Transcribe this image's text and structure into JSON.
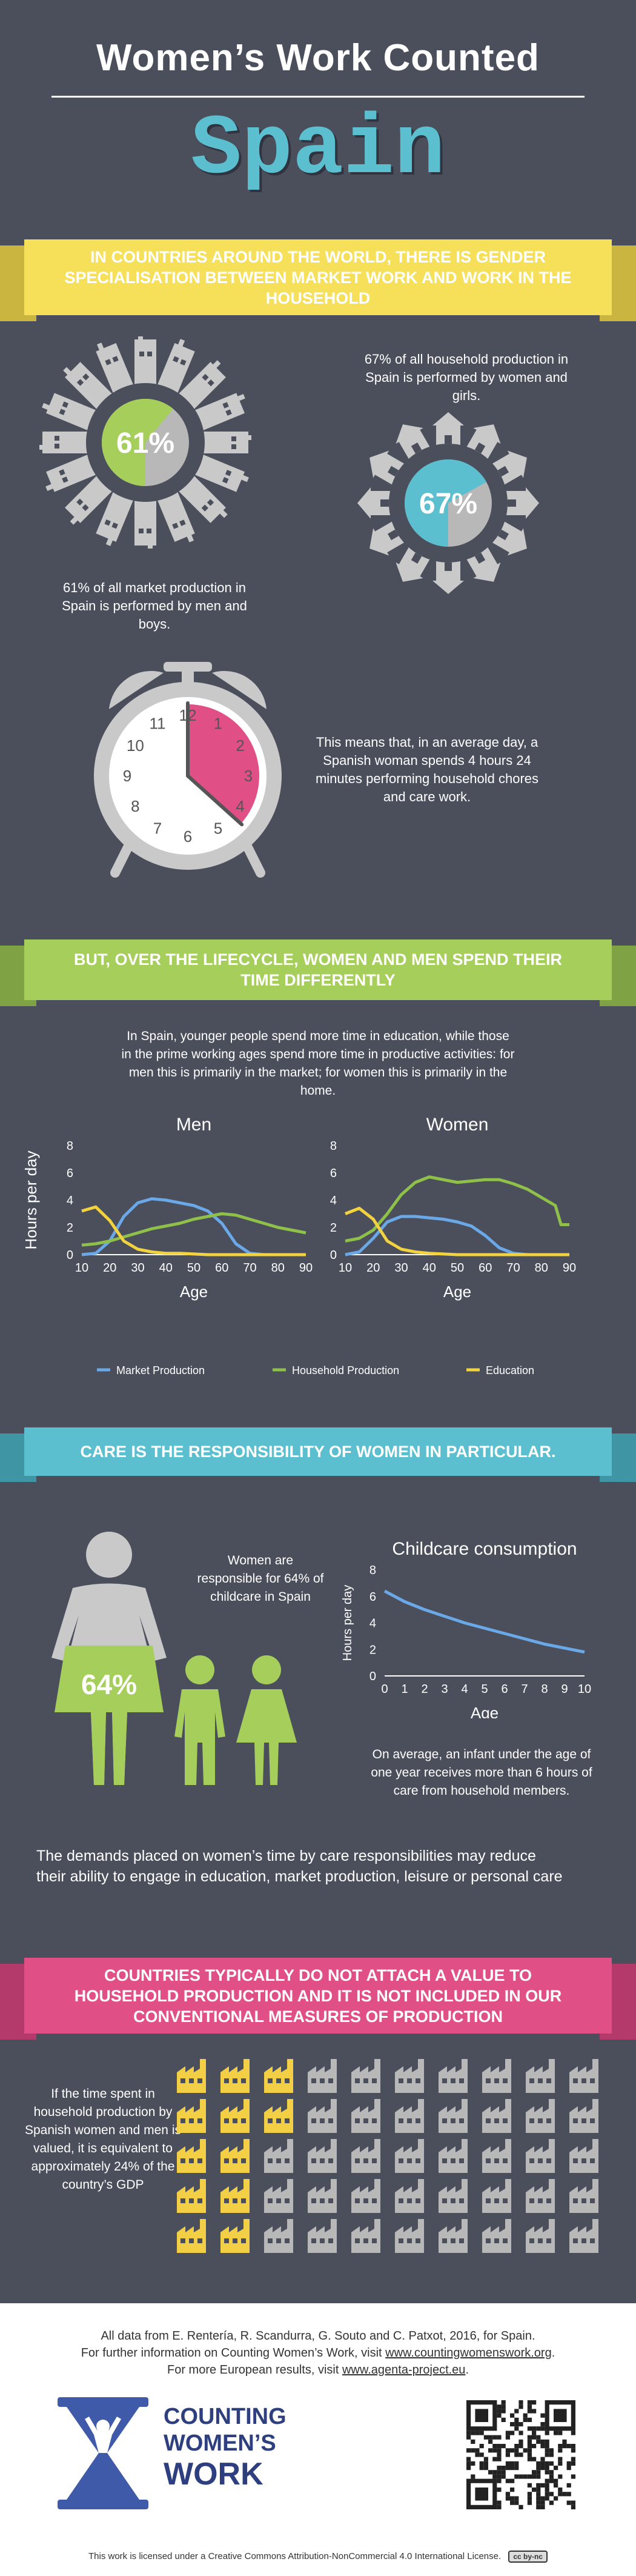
{
  "header": {
    "title": "Women’s Work Counted",
    "country": "Spain"
  },
  "section1": {
    "banner": "IN COUNTRIES AROUND THE WORLD, THERE IS GENDER SPECIALISATION BETWEEN MARKET WORK AND WORK IN THE HOUSEHOLD",
    "market_pct_label": "61%",
    "market_pct": 61,
    "market_caption": "61% of all market production in Spain is performed by men and boys.",
    "household_pct_label": "67%",
    "household_pct": 67,
    "household_caption": "67% of all household production in Spain is performed by women and girls.",
    "clock_caption": "This means that, in an average day, a Spanish woman spends 4 hours 24 minutes performing household chores and care work.",
    "clock_numbers": [
      "12",
      "1",
      "2",
      "3",
      "4",
      "5",
      "6",
      "7",
      "8",
      "9",
      "10",
      "11"
    ],
    "clock_hours": 4.4
  },
  "section2": {
    "banner": "BUT, OVER THE LIFECYCLE, WOMEN AND MEN SPEND THEIR TIME DIFFERENTLY",
    "intro": "In Spain, younger people spend more time in education, while those in the prime working ages spend more time in productive activities: for men this is primarily in the market; for women this is primarily in the home.",
    "legend": {
      "market": "Market Production",
      "household": "Household Production",
      "education": "Education"
    }
  },
  "section3": {
    "banner": "CARE IS THE RESPONSIBILITY OF WOMEN IN PARTICULAR.",
    "figure_pct": "64%",
    "women_caption": "Women are responsible for 64% of childcare in Spain",
    "infant_caption": "On average, an infant under the age of one year receives more than 6 hours of care from household members.",
    "demands_text": "The demands placed on women’s time by care responsibilities may reduce their ability to engage in education, market production, leisure or personal care"
  },
  "section4": {
    "banner": "COUNTRIES TYPICALLY DO NOT ATTACH A VALUE TO HOUSEHOLD PRODUCTION AND IT IS NOT INCLUDED IN OUR CONVENTIONAL MEASURES OF PRODUCTION",
    "gdp_caption": "If the time spent in household production by Spanish women and men is valued, it is equivalent to approximately 24% of the country’s GDP",
    "grid_cols": 10,
    "grid_rows": 5,
    "grid_highlight": 12
  },
  "footer": {
    "source_line": "All data from E. Rentería, R. Scandurra, G. Souto and C. Patxot, 2016, for Spain.",
    "further_prefix": "For further information on Counting Women’s Work, visit ",
    "further_link": "www.countingwomenswork.org",
    "european_prefix": "For more European results, visit ",
    "european_link": "www.agenta-project.eu",
    "logo_line1": "COUNTING",
    "logo_line2": "WOMEN’S",
    "logo_line3": "WORK",
    "license": "This work is licensed under a Creative Commons Attribution-NonCommercial 4.0 International License.",
    "cc_badge": "cc by-nc"
  },
  "colors": {
    "background": "#4a4f5b",
    "yellow": "#f6e05a",
    "green": "#a6ce5a",
    "blue": "#5bbfd0",
    "pink": "#e14f87",
    "market_line": "#6aa8e8",
    "household_line": "#8fc04a",
    "education_line": "#f2d33f",
    "grey_icon": "#b8b8b8",
    "gold_icon": "#f2cf44"
  },
  "chart_data": [
    {
      "type": "line",
      "title": "Men",
      "xlabel": "Age",
      "ylabel": "Hours per day",
      "xlim": [
        10,
        90
      ],
      "ylim": [
        0,
        8
      ],
      "xticks": [
        "10",
        "20",
        "30",
        "40",
        "50",
        "60",
        "70",
        "80",
        "90"
      ],
      "yticks": [
        "0",
        "2",
        "4",
        "6",
        "8"
      ],
      "x": [
        10,
        15,
        20,
        25,
        30,
        35,
        40,
        45,
        50,
        55,
        60,
        65,
        70,
        75,
        80,
        85,
        90
      ],
      "series": [
        {
          "name": "Market Production",
          "values": [
            0,
            0.1,
            1.0,
            2.8,
            3.8,
            4.1,
            4.0,
            3.8,
            3.6,
            3.2,
            2.3,
            0.8,
            0.1,
            0,
            0,
            0,
            0
          ]
        },
        {
          "name": "Household Production",
          "values": [
            0.7,
            0.8,
            1.0,
            1.3,
            1.6,
            1.9,
            2.1,
            2.3,
            2.6,
            2.8,
            3.0,
            2.9,
            2.6,
            2.3,
            2.0,
            1.8,
            1.6
          ]
        },
        {
          "name": "Education",
          "values": [
            3.2,
            3.5,
            2.5,
            1.0,
            0.4,
            0.2,
            0.1,
            0.1,
            0.05,
            0,
            0,
            0,
            0,
            0,
            0,
            0,
            0
          ]
        }
      ],
      "legend": "bottom"
    },
    {
      "type": "line",
      "title": "Women",
      "xlabel": "Age",
      "ylabel": "",
      "xlim": [
        10,
        90
      ],
      "ylim": [
        0,
        8
      ],
      "xticks": [
        "10",
        "20",
        "30",
        "40",
        "50",
        "60",
        "70",
        "80",
        "90"
      ],
      "yticks": [
        "0",
        "2",
        "4",
        "6",
        "8"
      ],
      "x": [
        10,
        15,
        20,
        25,
        30,
        35,
        40,
        45,
        50,
        55,
        60,
        65,
        70,
        75,
        80,
        85,
        87,
        90
      ],
      "series": [
        {
          "name": "Market Production",
          "values": [
            0,
            0.2,
            1.2,
            2.4,
            2.8,
            2.8,
            2.7,
            2.6,
            2.4,
            2.1,
            1.4,
            0.5,
            0.1,
            0,
            0,
            0,
            0,
            0
          ]
        },
        {
          "name": "Household Production",
          "values": [
            1.0,
            1.2,
            1.8,
            3.0,
            4.4,
            5.3,
            5.7,
            5.5,
            5.3,
            5.4,
            5.5,
            5.5,
            5.2,
            4.8,
            4.2,
            3.6,
            2.2,
            2.2
          ]
        },
        {
          "name": "Education",
          "values": [
            3.0,
            3.4,
            2.6,
            1.0,
            0.4,
            0.2,
            0.1,
            0.05,
            0,
            0,
            0,
            0,
            0,
            0,
            0,
            0,
            0,
            0
          ]
        }
      ],
      "legend": "bottom"
    },
    {
      "type": "line",
      "title": "Childcare consumption",
      "xlabel": "Age",
      "ylabel": "Hours per day",
      "xlim": [
        0,
        10
      ],
      "ylim": [
        0,
        8
      ],
      "xticks": [
        "0",
        "1",
        "2",
        "3",
        "4",
        "5",
        "6",
        "7",
        "8",
        "9",
        "10"
      ],
      "yticks": [
        "0",
        "2",
        "4",
        "6",
        "8"
      ],
      "x": [
        0,
        1,
        2,
        3,
        4,
        5,
        6,
        7,
        8,
        9,
        10
      ],
      "series": [
        {
          "values": [
            6.4,
            5.6,
            5.0,
            4.5,
            4.0,
            3.6,
            3.2,
            2.8,
            2.4,
            2.1,
            1.8
          ]
        }
      ]
    }
  ]
}
